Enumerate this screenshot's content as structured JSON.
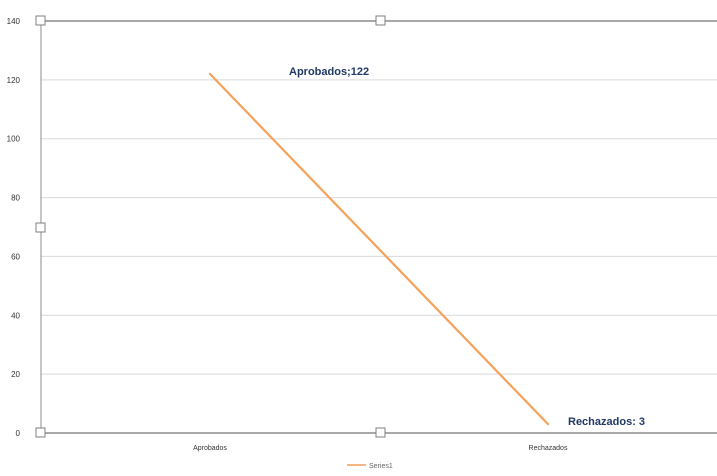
{
  "chart_data": {
    "type": "line",
    "categories": [
      "Aprobados",
      "Rechazados"
    ],
    "series": [
      {
        "name": "Series1",
        "values": [
          122,
          3
        ],
        "color": "#f4a15a"
      }
    ],
    "data_labels": [
      "Aprobados;122",
      "Rechazados: 3"
    ],
    "ylim": [
      0,
      140
    ],
    "yticks": [
      "0",
      "20",
      "40",
      "60",
      "80",
      "100",
      "120",
      "140"
    ],
    "grid": true,
    "legend": "bottom",
    "title": "",
    "xlabel": "",
    "ylabel": ""
  },
  "colors": {
    "gridline": "#d9d9d9",
    "axis": "#8c8c8c",
    "label": "#1f3864"
  }
}
